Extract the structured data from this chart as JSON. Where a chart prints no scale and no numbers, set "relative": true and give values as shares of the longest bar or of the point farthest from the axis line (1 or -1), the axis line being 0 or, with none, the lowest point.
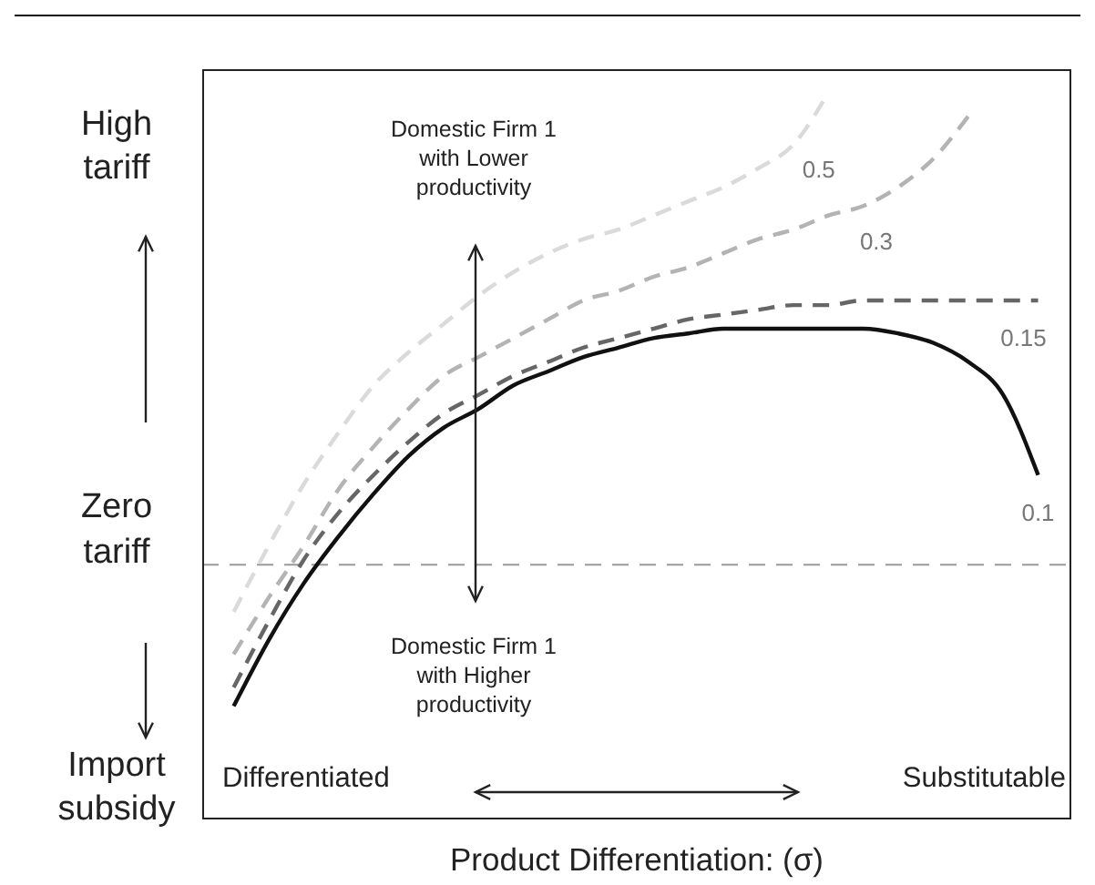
{
  "chart_data": {
    "type": "line",
    "relative": true,
    "xlabel": "Product Differentiation: (σ)",
    "categories": [
      null,
      null,
      null,
      null,
      null,
      null,
      null,
      null,
      null,
      null,
      null,
      null,
      null,
      null,
      null,
      null,
      null,
      null,
      null,
      null,
      null,
      null,
      null,
      null
    ],
    "series": [
      {
        "name": "0.1",
        "color": "#111111",
        "line_style": "solid",
        "values": [
          -0.3,
          -0.16,
          -0.04,
          0.06,
          0.15,
          0.23,
          0.29,
          0.33,
          0.38,
          0.41,
          0.44,
          0.46,
          0.48,
          0.49,
          0.5,
          0.5,
          0.5,
          0.5,
          0.5,
          0.49,
          0.47,
          0.43,
          0.36,
          0.19
        ]
      },
      {
        "name": "0.15",
        "color": "#666666",
        "line_style": "dashed",
        "values": [
          -0.26,
          -0.12,
          0.01,
          0.11,
          0.19,
          0.26,
          0.32,
          0.36,
          0.4,
          0.43,
          0.46,
          0.48,
          0.5,
          0.52,
          0.53,
          0.54,
          0.55,
          0.55,
          0.56,
          0.56,
          0.56,
          0.56,
          0.56,
          0.56
        ]
      },
      {
        "name": "0.3",
        "color": "#b3b3b3",
        "line_style": "dashed",
        "values": [
          -0.19,
          -0.07,
          0.04,
          0.16,
          0.25,
          0.33,
          0.4,
          0.44,
          0.48,
          0.52,
          0.56,
          0.58,
          0.61,
          0.63,
          0.66,
          0.69,
          0.71,
          0.74,
          0.76,
          0.8,
          0.86,
          0.95,
          null,
          null
        ]
      },
      {
        "name": "0.5",
        "color": "#dadada",
        "line_style": "dashed",
        "values": [
          -0.1,
          0.04,
          0.17,
          0.28,
          0.38,
          0.45,
          0.51,
          0.57,
          0.62,
          0.66,
          0.69,
          0.71,
          0.74,
          0.77,
          0.8,
          0.84,
          0.89,
          1.0,
          null,
          null,
          null,
          null,
          null,
          null
        ]
      }
    ],
    "ref_lines": [
      {
        "axis": "y",
        "value": 0,
        "label": "Zero tariff",
        "color": "#999999",
        "line_style": "dashed"
      }
    ],
    "annotations": [
      "High tariff",
      "Import subsidy",
      "Domestic Firm 1 with Lower productivity",
      "Domestic Firm 1 with Higher productivity",
      "Differentiated",
      "Substitutable"
    ],
    "marker": "none"
  }
}
